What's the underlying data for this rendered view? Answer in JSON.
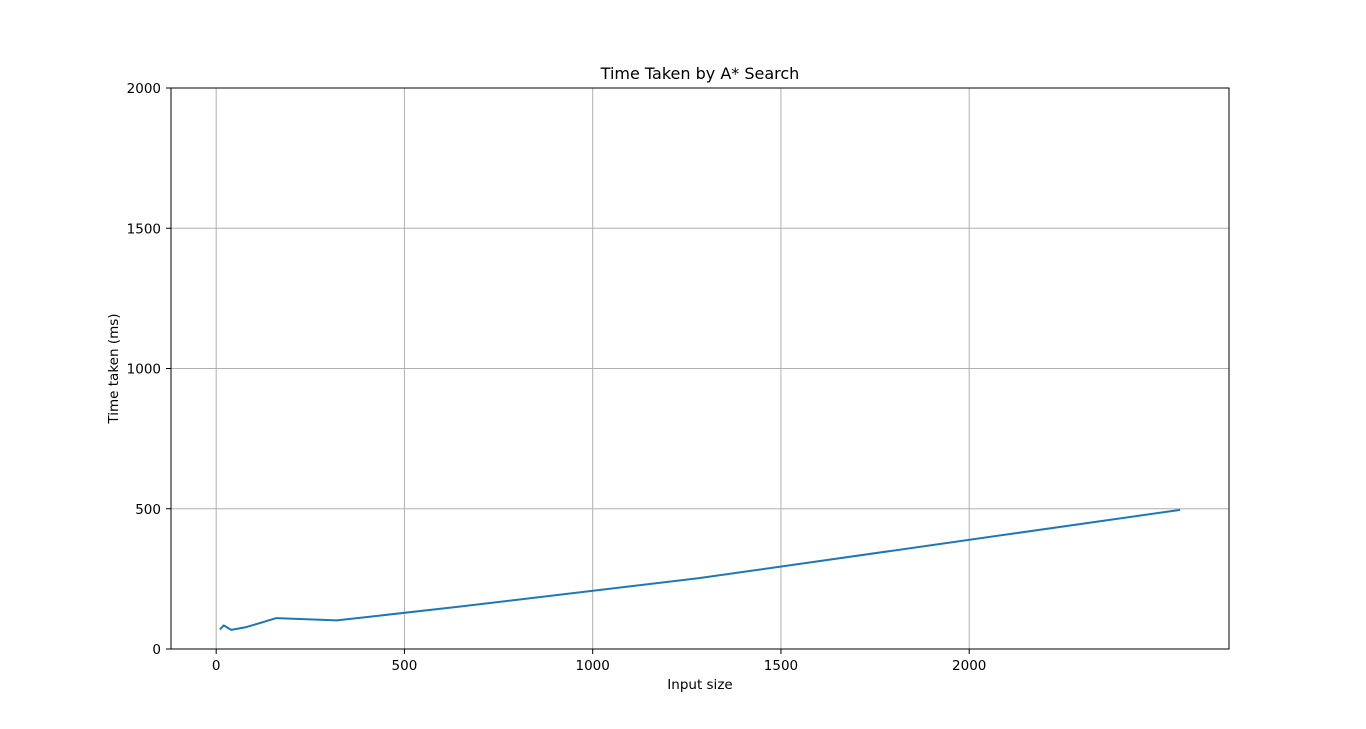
{
  "chart_data": {
    "type": "line",
    "title": "Time Taken by A* Search",
    "xlabel": "Input size",
    "ylabel": "Time taken (ms)",
    "xlim": [
      -120,
      2690
    ],
    "ylim": [
      0,
      2000
    ],
    "xticks": [
      0,
      500,
      1000,
      1500,
      2000
    ],
    "yticks": [
      0,
      500,
      1000,
      1500,
      2000
    ],
    "grid": true,
    "line_color": "#1f77b4",
    "grid_color": "#b0b0b0",
    "series": [
      {
        "x": [
          10,
          20,
          40,
          80,
          160,
          320,
          640,
          1280,
          2560
        ],
        "y": [
          70,
          84,
          68,
          78,
          110,
          102,
          150,
          252,
          496
        ]
      }
    ]
  }
}
